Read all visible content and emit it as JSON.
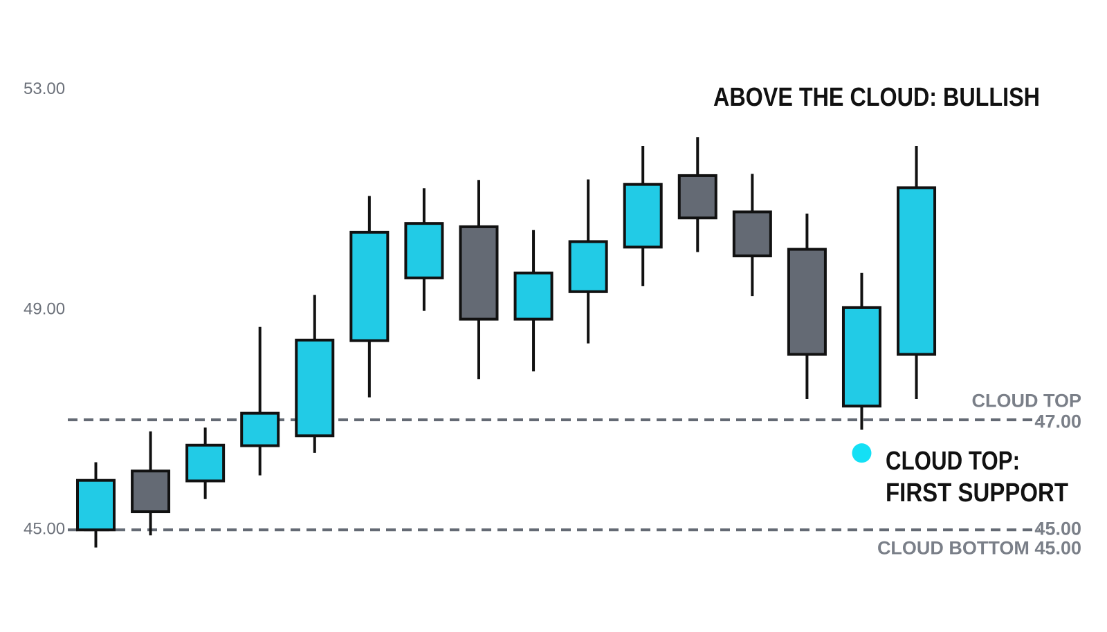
{
  "chart_data": {
    "type": "candlestick",
    "annotations": [
      "ABOVE THE CLOUD: BULLISH",
      "CLOUD TOP:",
      "FIRST SUPPORT"
    ],
    "open": [
      45.0,
      46.07,
      45.89,
      46.53,
      46.71,
      48.44,
      49.58,
      50.51,
      48.83,
      49.33,
      50.14,
      51.44,
      50.78,
      50.1,
      47.25,
      48.19
    ],
    "high": [
      46.23,
      46.79,
      46.86,
      48.69,
      49.27,
      51.07,
      51.21,
      51.36,
      50.45,
      51.37,
      51.98,
      52.14,
      51.47,
      50.75,
      49.67,
      51.98
    ],
    "low": [
      44.68,
      44.9,
      45.56,
      45.99,
      46.4,
      47.41,
      48.98,
      47.74,
      47.88,
      48.39,
      49.43,
      50.05,
      49.25,
      47.38,
      46.82,
      47.38
    ],
    "close": [
      45.9,
      45.33,
      46.54,
      47.12,
      48.45,
      50.41,
      50.57,
      48.83,
      49.67,
      50.24,
      51.28,
      50.67,
      49.98,
      48.19,
      49.04,
      51.22
    ],
    "up_color": "#22cbe6",
    "down_color": "#646a74",
    "ylim": [
      44.3,
      53.4
    ],
    "yticks": [
      {
        "value": 45,
        "label": "45.00"
      },
      {
        "value": 49,
        "label": "49.00"
      },
      {
        "value": 53,
        "label": "53.00"
      }
    ],
    "reference_lines": [
      {
        "value": 47,
        "name": "CLOUD TOP",
        "label": "47.00",
        "color": "#646a74"
      },
      {
        "value": 45,
        "name": "CLOUD BOTTOM 45.00",
        "label": "45.00",
        "color": "#646a74"
      }
    ]
  }
}
